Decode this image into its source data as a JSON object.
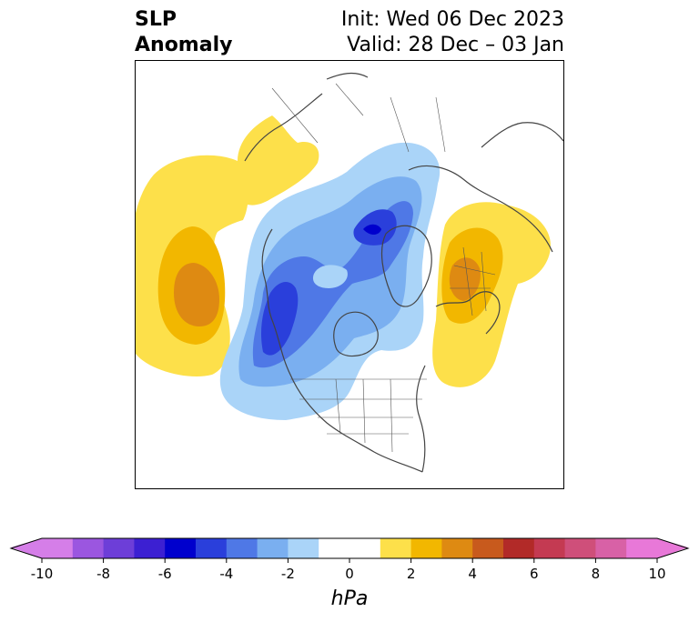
{
  "title": {
    "line1": "SLP",
    "line2": "Anomaly",
    "init": "Init: Wed 06 Dec 2023",
    "valid": "Valid: 28 Dec – 03 Jan"
  },
  "colorbar": {
    "units": "hPa",
    "min": -10,
    "max": 10,
    "step": 1,
    "ticks": [
      "-10",
      "-8",
      "-6",
      "-4",
      "-2",
      "0",
      "2",
      "4",
      "6",
      "8",
      "10"
    ],
    "colors": [
      "#d57ee8",
      "#9b56e0",
      "#6d3ed8",
      "#3c20d2",
      "#0000cd",
      "#2a3fdb",
      "#4f78e6",
      "#7aaff0",
      "#aad4f8",
      "#ffffff",
      "#ffffff",
      "#fde04a",
      "#f2b700",
      "#de8a12",
      "#c85a1d",
      "#b22a28",
      "#c43a52",
      "#cf4f7a",
      "#d861a6",
      "#e878d8"
    ],
    "under_color": "#d57ee8",
    "over_color": "#e878d8"
  }
}
